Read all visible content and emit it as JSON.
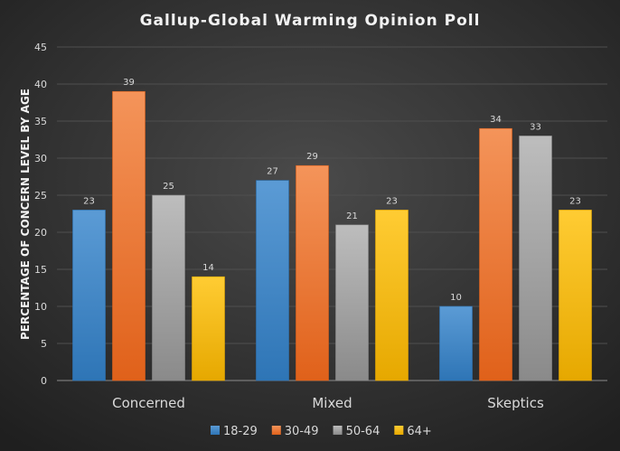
{
  "chart_data": {
    "type": "bar",
    "title": "Gallup-Global Warming Opinion Poll",
    "xlabel": "",
    "ylabel": "PERCENTAGE OF CONCERN LEVEL BY AGE",
    "ylim": [
      0,
      45
    ],
    "yticks": [
      0,
      5,
      10,
      15,
      20,
      25,
      30,
      35,
      40,
      45
    ],
    "grid": true,
    "legend_position": "bottom",
    "categories": [
      "Concerned",
      "Mixed",
      "Skeptics"
    ],
    "series": [
      {
        "name": "18-29",
        "values": [
          23,
          27,
          10
        ],
        "color": "#5b9bd5",
        "color_dark": "#2e75b6"
      },
      {
        "name": "30-49",
        "values": [
          39,
          29,
          34
        ],
        "color": "#f4945a",
        "color_dark": "#e0611a"
      },
      {
        "name": "50-64",
        "values": [
          25,
          21,
          33
        ],
        "color": "#bdbdbd",
        "color_dark": "#8a8a8a"
      },
      {
        "name": "64+",
        "values": [
          14,
          23,
          23
        ],
        "color": "#ffcc33",
        "color_dark": "#e6a800"
      }
    ]
  }
}
